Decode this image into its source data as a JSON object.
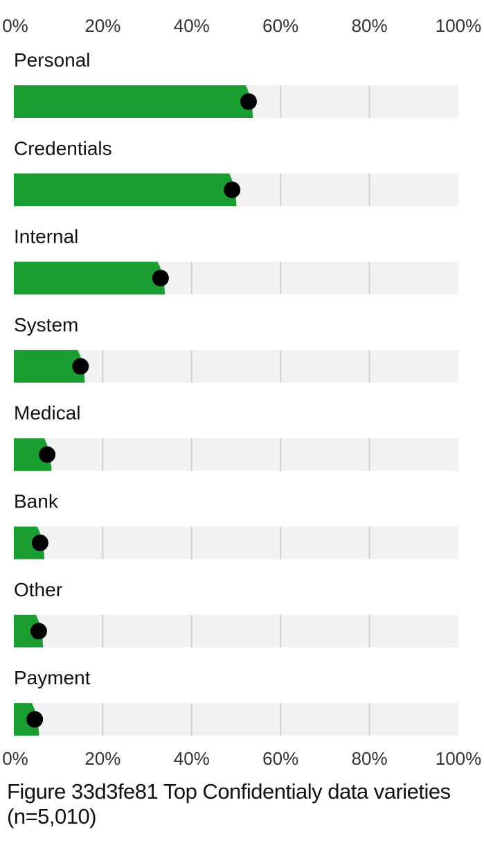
{
  "chart_data": {
    "type": "bar",
    "categories": [
      "Personal",
      "Credentials",
      "Internal",
      "System",
      "Medical",
      "Bank",
      "Other",
      "Payment"
    ],
    "values": [
      52.8,
      49.1,
      33.0,
      15.0,
      7.5,
      5.9,
      5.6,
      4.7
    ],
    "xlim": [
      0,
      100
    ],
    "ticks": [
      "0%",
      "20%",
      "40%",
      "60%",
      "80%",
      "100%"
    ],
    "tick_values": [
      0,
      20,
      40,
      60,
      80,
      100
    ],
    "grid": true,
    "colors": {
      "bar": "#1a9e32",
      "track": "#f2f2f2",
      "grid": "#d0d0d0",
      "dot": "#000000"
    }
  },
  "caption": {
    "line1": "Figure 33d3fe81 Top Confidentialy data varieties",
    "line2": "(n=5,010)"
  }
}
